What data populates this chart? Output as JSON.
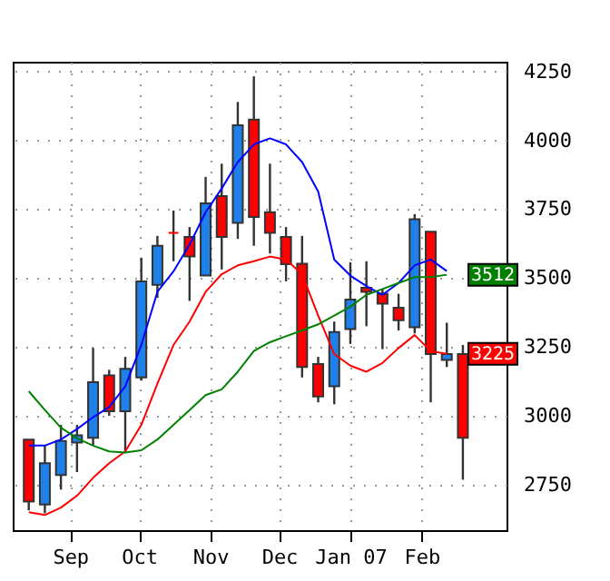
{
  "chart_data": {
    "type": "candlestick",
    "x": [
      "2006-08-14",
      "2006-08-21",
      "2006-08-28",
      "2006-09-04",
      "2006-09-11",
      "2006-09-18",
      "2006-09-25",
      "2006-10-02",
      "2006-10-09",
      "2006-10-16",
      "2006-10-23",
      "2006-10-30",
      "2006-11-06",
      "2006-11-13",
      "2006-11-20",
      "2006-11-27",
      "2006-12-04",
      "2006-12-11",
      "2006-12-18",
      "2006-12-25",
      "2007-01-01",
      "2007-01-08",
      "2007-01-15",
      "2007-01-22",
      "2007-01-29",
      "2007-02-05",
      "2007-02-12",
      "2007-02-19"
    ],
    "ohlc": [
      [
        2914,
        2914,
        2657,
        2689
      ],
      [
        2678,
        2892,
        2646,
        2828
      ],
      [
        2785,
        2967,
        2732,
        2909
      ],
      [
        2903,
        2967,
        2796,
        2929
      ],
      [
        2920,
        3246,
        2892,
        3122
      ],
      [
        3147,
        3167,
        3000,
        3017
      ],
      [
        3017,
        3214,
        2871,
        3171
      ],
      [
        3139,
        3574,
        3128,
        3488
      ],
      [
        3475,
        3653,
        3428,
        3617
      ],
      [
        3664,
        3745,
        3561,
        3664
      ],
      [
        3649,
        3685,
        3417,
        3578
      ],
      [
        3509,
        3867,
        3509,
        3771
      ],
      [
        3797,
        3915,
        3531,
        3649
      ],
      [
        3700,
        4139,
        3642,
        4054
      ],
      [
        4075,
        4232,
        3617,
        3722
      ],
      [
        3739,
        3915,
        3589,
        3664
      ],
      [
        3649,
        3685,
        3488,
        3550
      ],
      [
        3552,
        3653,
        3139,
        3177
      ],
      [
        3188,
        3214,
        3049,
        3070
      ],
      [
        3107,
        3342,
        3042,
        3304
      ],
      [
        3315,
        3557,
        3261,
        3422
      ],
      [
        3465,
        3561,
        3325,
        3450
      ],
      [
        3443,
        3460,
        3242,
        3407
      ],
      [
        3392,
        3443,
        3310,
        3347
      ],
      [
        3321,
        3732,
        3299,
        3713
      ],
      [
        3668,
        3668,
        3049,
        3224
      ],
      [
        3203,
        3338,
        3177,
        3224
      ],
      [
        3224,
        3257,
        2768,
        2920
      ]
    ],
    "colors": [
      "#ff0000",
      "#1e80e8",
      "#1e80e8",
      "#1e80e8",
      "#1e80e8",
      "#ff0000",
      "#1e80e8",
      "#1e80e8",
      "#1e80e8",
      "#ff0000",
      "#ff0000",
      "#1e80e8",
      "#ff0000",
      "#1e80e8",
      "#ff0000",
      "#ff0000",
      "#ff0000",
      "#ff0000",
      "#ff0000",
      "#1e80e8",
      "#1e80e8",
      "#ff0000",
      "#ff0000",
      "#ff0000",
      "#1e80e8",
      "#ff0000",
      "#1e80e8",
      "#ff0000"
    ],
    "series": [
      {
        "type": "line",
        "color": "#0000ff",
        "values": [
          2892,
          2892,
          2914,
          2952,
          2995,
          3032,
          3107,
          3257,
          3450,
          3524,
          3621,
          3739,
          3825,
          3921,
          3985,
          4007,
          3985,
          3921,
          3814,
          3567,
          3509,
          3471,
          3439,
          3482,
          3546,
          3567,
          3525,
          null
        ]
      },
      {
        "type": "line",
        "color": "#ff0000",
        "values": [
          2650,
          2640,
          2667,
          2710,
          2775,
          2828,
          2871,
          2967,
          3117,
          3257,
          3342,
          3450,
          3514,
          3546,
          3561,
          3578,
          3567,
          3514,
          3364,
          3224,
          3182,
          3160,
          3192,
          3246,
          3293,
          3235,
          3225,
          null
        ],
        "value_labels": [
          null,
          null,
          null,
          null,
          null,
          null,
          null,
          null,
          null,
          null,
          null,
          null,
          null,
          null,
          null,
          null,
          null,
          null,
          null,
          null,
          null,
          null,
          null,
          null,
          null,
          null,
          "3225",
          null
        ]
      },
      {
        "type": "line",
        "color": "#008000",
        "values": [
          3089,
          3021,
          2957,
          2918,
          2892,
          2871,
          2867,
          2875,
          2914,
          2967,
          3021,
          3075,
          3096,
          3160,
          3235,
          3267,
          3289,
          3310,
          3332,
          3364,
          3396,
          3439,
          3460,
          3482,
          3503,
          3503,
          3512,
          null
        ],
        "value_labels": [
          null,
          null,
          null,
          null,
          null,
          null,
          null,
          null,
          null,
          null,
          null,
          null,
          null,
          null,
          null,
          null,
          null,
          null,
          null,
          null,
          null,
          null,
          null,
          null,
          null,
          null,
          "3512",
          null
        ]
      }
    ],
    "xlim": [
      "2006-08-07",
      "2007-03-10"
    ],
    "xticks": [
      {
        "value": "2006-09-01",
        "label": "Sep"
      },
      {
        "value": "2006-10-01",
        "label": "Oct"
      },
      {
        "value": "2006-11-01",
        "label": "Nov"
      },
      {
        "value": "2006-12-01",
        "label": "Dec"
      },
      {
        "value": "2007-01-01",
        "label": "Jan 07"
      },
      {
        "value": "2007-02-01",
        "label": "Feb"
      }
    ],
    "ylim": [
      2585,
      4285
    ],
    "yticks": [
      2750,
      3000,
      3250,
      3500,
      3750,
      4000,
      4250
    ],
    "grid": true
  }
}
